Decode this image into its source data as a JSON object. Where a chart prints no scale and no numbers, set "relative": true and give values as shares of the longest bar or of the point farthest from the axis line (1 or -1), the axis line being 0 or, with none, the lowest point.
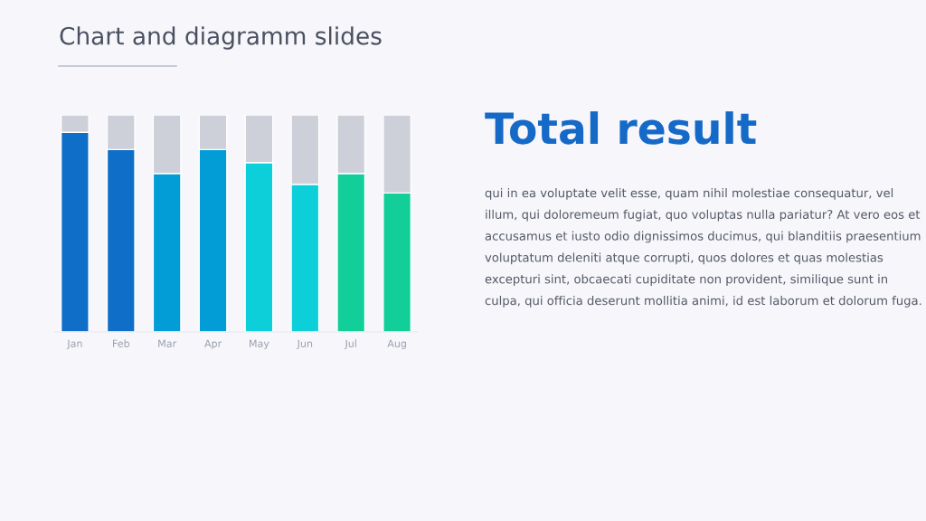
{
  "chart_data": {
    "type": "bar",
    "title": "Chart and diagramm slides",
    "stacked": true,
    "relative": true,
    "legend": false,
    "categories": [
      "Jan",
      "Feb",
      "Mar",
      "Apr",
      "May",
      "Jun",
      "Jul",
      "Aug"
    ],
    "series": [
      {
        "colors": [
          "#0f6ec8",
          "#0f6ec8",
          "#029dd7",
          "#029dd7",
          "#0ccfda",
          "#0ccfda",
          "#12cf9a",
          "#12cf9a"
        ],
        "values": [
          0.92,
          0.84,
          0.73,
          0.84,
          0.78,
          0.68,
          0.73,
          0.64
        ]
      },
      {
        "color": "#cdd0d9",
        "values": [
          0.08,
          0.16,
          0.27,
          0.16,
          0.22,
          0.32,
          0.27,
          0.36
        ]
      }
    ],
    "annotations": [
      "Total result",
      "qui in ea voluptate velit esse, quam nihil molestiae consequatur, vel illum, qui doloremeum fugiat, quo voluptas nulla pariatur? At vero eos et accusamus et iusto odio dignissimos ducimus, qui blanditiis praesentium voluptatum deleniti atque corrupti, quos dolores et quas molestias excepturi sint, obcaecati cupiditate non provident, similique sunt in culpa, qui officia deserunt mollitia animi, id est laborum et dolorum fuga."
    ]
  }
}
